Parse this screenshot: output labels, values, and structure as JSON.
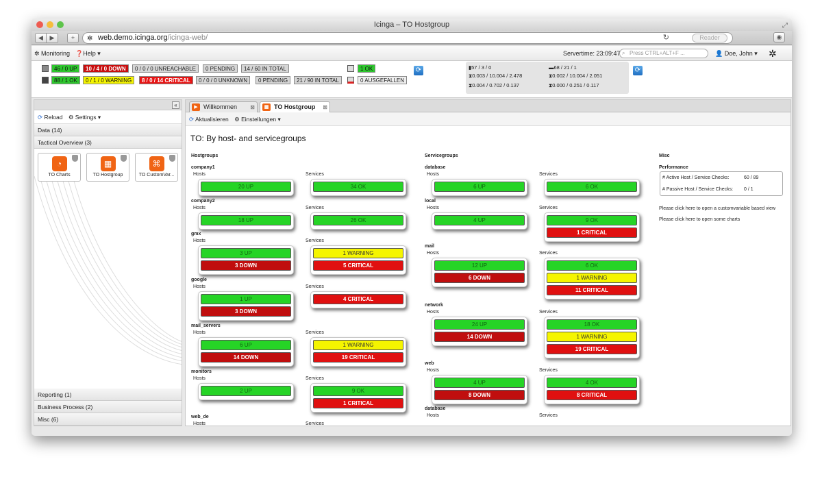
{
  "browser": {
    "title": "Icinga – TO Hostgroup",
    "url_host": "web.demo.icinga.org",
    "url_path": "/icinga-web/",
    "reader": "Reader"
  },
  "menu": {
    "monitoring": "Monitoring",
    "help": "Help",
    "servertime": "Servertime: 23:09:47",
    "search_placeholder": "Press CTRL+ALT+F ...",
    "user": "Doe, John"
  },
  "status": {
    "hosts": [
      "46 / 0 UP",
      "10 / 4 / 0 DOWN",
      "0 / 0 / 0 UNREACHABLE",
      "0 PENDING",
      "14 / 60 IN TOTAL"
    ],
    "services": [
      "88 / 1 OK",
      "0 / 1 / 0 WARNING",
      "8 / 0 / 14 CRITICAL",
      "0 / 0 / 0 UNKNOWN",
      "0 PENDING",
      "21 / 90 IN TOTAL"
    ],
    "ok": "1 OK",
    "ausgefallen": "0 AUSGEFALLEN",
    "perf": [
      "57 / 3 / 0",
      "68 / 21 / 1",
      "0.003 / 10.004 / 2.478",
      "0.002 / 10.004 / 2.051",
      "0.004 / 0.702 / 0.137",
      "0.000 / 0.251 / 0.117"
    ]
  },
  "sidebar": {
    "reload": "Reload",
    "settings": "Settings",
    "data": "Data (14)",
    "tactical": "Tactical Overview (3)",
    "tiles": [
      "TO Charts",
      "TO Hostgroup",
      "TO CustomVar..."
    ],
    "reporting": "Reporting (1)",
    "business": "Business Process (2)",
    "misc": "Misc (6)"
  },
  "tabs": [
    "Willkommen",
    "TO Hostgroup"
  ],
  "toolbar": {
    "refresh": "Aktualisieren",
    "settings": "Einstellungen"
  },
  "content": {
    "title": "TO: By host- and servicegroups",
    "hostgroups": "Hostgroups",
    "servicegroups": "Servicegroups",
    "misc": "Misc",
    "hosts_label": "Hosts",
    "services_label": "Services",
    "hostgroup_list": [
      {
        "name": "company1",
        "hosts": [
          [
            "20 UP",
            "g"
          ]
        ],
        "services": [
          [
            "34 OK",
            "g"
          ]
        ]
      },
      {
        "name": "company2",
        "hosts": [
          [
            "18 UP",
            "g"
          ]
        ],
        "services": [
          [
            "26 OK",
            "g"
          ]
        ]
      },
      {
        "name": "gmx",
        "hosts": [
          [
            "3 UP",
            "g"
          ],
          [
            "3 DOWN",
            "dr"
          ]
        ],
        "services": [
          [
            "1 WARNING",
            "y"
          ],
          [
            "5 CRITICAL",
            "r"
          ]
        ]
      },
      {
        "name": "google",
        "hosts": [
          [
            "1 UP",
            "g"
          ],
          [
            "3 DOWN",
            "dr"
          ]
        ],
        "services": [
          [
            "4 CRITICAL",
            "r"
          ]
        ]
      },
      {
        "name": "mail_servers",
        "hosts": [
          [
            "6 UP",
            "g"
          ],
          [
            "14 DOWN",
            "dr"
          ]
        ],
        "services": [
          [
            "1 WARNING",
            "y"
          ],
          [
            "19 CRITICAL",
            "r"
          ]
        ]
      },
      {
        "name": "monitors",
        "hosts": [
          [
            "2 UP",
            "g"
          ]
        ],
        "services": [
          [
            "9 OK",
            "g"
          ],
          [
            "1 CRITICAL",
            "r"
          ]
        ]
      },
      {
        "name": "web_de",
        "hosts": [],
        "services": []
      }
    ],
    "servicegroup_list": [
      {
        "name": "database",
        "hosts": [
          [
            "6 UP",
            "g"
          ]
        ],
        "services": [
          [
            "6 OK",
            "g"
          ]
        ]
      },
      {
        "name": "local",
        "hosts": [
          [
            "4 UP",
            "g"
          ]
        ],
        "services": [
          [
            "9 OK",
            "g"
          ],
          [
            "1 CRITICAL",
            "r"
          ]
        ]
      },
      {
        "name": "mail",
        "hosts": [
          [
            "12 UP",
            "g"
          ],
          [
            "6 DOWN",
            "dr"
          ]
        ],
        "services": [
          [
            "6 OK",
            "g"
          ],
          [
            "1 WARNING",
            "y"
          ],
          [
            "11 CRITICAL",
            "r"
          ]
        ]
      },
      {
        "name": "network",
        "hosts": [
          [
            "24 UP",
            "g"
          ],
          [
            "14 DOWN",
            "dr"
          ]
        ],
        "services": [
          [
            "18 OK",
            "g"
          ],
          [
            "1 WARNING",
            "y"
          ],
          [
            "19 CRITICAL",
            "r"
          ]
        ]
      },
      {
        "name": "web",
        "hosts": [
          [
            "4 UP",
            "g"
          ],
          [
            "8 DOWN",
            "dr"
          ]
        ],
        "services": [
          [
            "4 OK",
            "g"
          ],
          [
            "8 CRITICAL",
            "r"
          ]
        ]
      },
      {
        "name": "database",
        "hosts": [],
        "services": []
      }
    ],
    "performance": "Performance",
    "active_label": "# Active Host / Service Checks:",
    "active_val": "60 / 89",
    "passive_label": "# Passive Host / Service Checks:",
    "passive_val": "0 / 1",
    "link1": "Please click here to open a customvariable based view",
    "link2": "Please click here to open some charts"
  }
}
